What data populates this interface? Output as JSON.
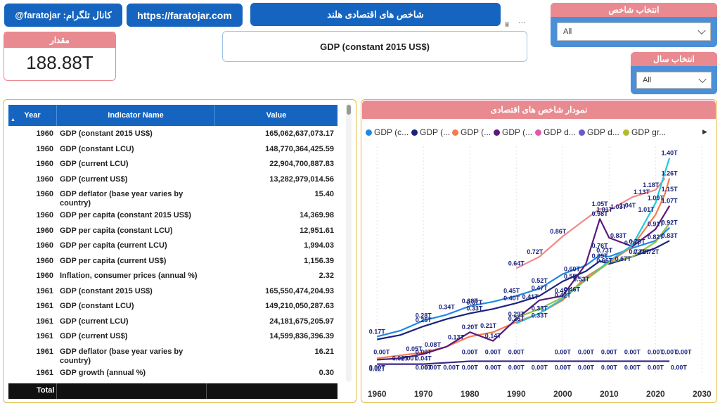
{
  "header": {
    "telegram": "@faratojar :کانال تلگرام",
    "website": "https://faratojar.com",
    "report_title": "شاخص های اقتصادی هلند",
    "selected_indicator": "GDP (constant 2015 US$)"
  },
  "kpi": {
    "label": "مقدار",
    "value": "188.88T"
  },
  "slicers": {
    "indicator": {
      "label": "انتخاب شاخص",
      "value": "All"
    },
    "year": {
      "label": "انتخاب سال",
      "value": "All"
    }
  },
  "table": {
    "headers": {
      "year": "Year",
      "name": "Indicator Name",
      "value": "Value"
    },
    "rows": [
      {
        "year": "1960",
        "name": "GDP (constant 2015 US$)",
        "value": "165,062,637,073.17"
      },
      {
        "year": "1960",
        "name": "GDP (constant LCU)",
        "value": "148,770,364,425.59"
      },
      {
        "year": "1960",
        "name": "GDP (current LCU)",
        "value": "22,904,700,887.83"
      },
      {
        "year": "1960",
        "name": "GDP (current US$)",
        "value": "13,282,979,014.56"
      },
      {
        "year": "1960",
        "name": "GDP deflator (base year varies by",
        "name2": "country)",
        "value": "15.40"
      },
      {
        "year": "1960",
        "name": "GDP per capita (constant 2015 US$)",
        "value": "14,369.98"
      },
      {
        "year": "1960",
        "name": "GDP per capita (constant LCU)",
        "value": "12,951.61"
      },
      {
        "year": "1960",
        "name": "GDP per capita (current LCU)",
        "value": "1,994.03"
      },
      {
        "year": "1960",
        "name": "GDP per capita (current US$)",
        "value": "1,156.39"
      },
      {
        "year": "1960",
        "name": "Inflation, consumer prices (annual %)",
        "value": "2.32"
      },
      {
        "year": "1961",
        "name": "GDP (constant 2015 US$)",
        "value": "165,550,474,204.93"
      },
      {
        "year": "1961",
        "name": "GDP (constant LCU)",
        "value": "149,210,050,287.63"
      },
      {
        "year": "1961",
        "name": "GDP (current LCU)",
        "value": "24,181,675,205.97"
      },
      {
        "year": "1961",
        "name": "GDP (current US$)",
        "value": "14,599,836,396.39"
      },
      {
        "year": "1961",
        "name": "GDP deflator (base year varies by",
        "name2": "country)",
        "value": "16.21"
      },
      {
        "year": "1961",
        "name": "GDP growth (annual %)",
        "value": "0.30"
      }
    ],
    "total_label": "Total"
  },
  "chart_panel_title": "نمودار شاخص های اقتصادی",
  "chart_data": {
    "type": "line",
    "legend": [
      {
        "label": "GDP (c...",
        "color": "#1e88e5"
      },
      {
        "label": "GDP (...",
        "color": "#1a237e"
      },
      {
        "label": "GDP (...",
        "color": "#f57c4e"
      },
      {
        "label": "GDP (...",
        "color": "#5a1a7a"
      },
      {
        "label": "GDP d...",
        "color": "#e05aa8"
      },
      {
        "label": "GDP d...",
        "color": "#6a5acd"
      },
      {
        "label": "GDP gr...",
        "color": "#b5b92a"
      }
    ],
    "x_ticks": [
      1960,
      1970,
      1980,
      1990,
      2000,
      2010,
      2020,
      2030
    ],
    "xlim": [
      1958,
      2031
    ],
    "ylim": [
      -0.08,
      1.48
    ],
    "series": [
      {
        "color": "#1e88e5",
        "values": [
          [
            1960,
            0.17
          ],
          [
            1965,
            0.21
          ],
          [
            1970,
            0.28
          ],
          [
            1975,
            0.32
          ],
          [
            1980,
            0.38
          ],
          [
            1985,
            0.41
          ],
          [
            1990,
            0.45
          ],
          [
            1995,
            0.5
          ],
          [
            2000,
            0.6
          ],
          [
            2005,
            0.66
          ],
          [
            2008,
            0.73
          ],
          [
            2010,
            0.72
          ],
          [
            2015,
            0.78
          ],
          [
            2020,
            0.83
          ],
          [
            2023,
            0.92
          ]
        ]
      },
      {
        "color": "#1a237e",
        "values": [
          [
            1960,
            0.15
          ],
          [
            1965,
            0.18
          ],
          [
            1970,
            0.24
          ],
          [
            1975,
            0.29
          ],
          [
            1980,
            0.33
          ],
          [
            1985,
            0.36
          ],
          [
            1990,
            0.4
          ],
          [
            1995,
            0.45
          ],
          [
            2000,
            0.55
          ],
          [
            2005,
            0.62
          ],
          [
            2008,
            0.69
          ],
          [
            2010,
            0.67
          ],
          [
            2015,
            0.72
          ],
          [
            2020,
            0.78
          ],
          [
            2023,
            0.83
          ]
        ]
      },
      {
        "color": "#f57c4e",
        "values": [
          [
            1960,
            0.02
          ],
          [
            1965,
            0.04
          ],
          [
            1970,
            0.06
          ],
          [
            1975,
            0.1
          ],
          [
            1980,
            0.17
          ],
          [
            1985,
            0.2
          ],
          [
            1990,
            0.27
          ],
          [
            1995,
            0.33
          ],
          [
            2000,
            0.42
          ],
          [
            2005,
            0.58
          ],
          [
            2010,
            0.68
          ],
          [
            2015,
            0.79
          ],
          [
            2020,
            1.01
          ],
          [
            2022,
            1.15
          ],
          [
            2023,
            1.26
          ]
        ]
      },
      {
        "color": "#5a1a7a",
        "values": [
          [
            1960,
            0.01
          ],
          [
            1965,
            0.02
          ],
          [
            1970,
            0.05
          ],
          [
            1975,
            0.1
          ],
          [
            1980,
            0.2
          ],
          [
            1985,
            0.14
          ],
          [
            1990,
            0.29
          ],
          [
            1995,
            0.42
          ],
          [
            2000,
            0.45
          ],
          [
            2005,
            0.67
          ],
          [
            2008,
            0.98
          ],
          [
            2010,
            0.85
          ],
          [
            2015,
            0.79
          ],
          [
            2020,
            0.91
          ],
          [
            2023,
            1.07
          ]
        ]
      },
      {
        "color": "#ef8a8a",
        "values": [
          [
            1990,
            0.64
          ],
          [
            1995,
            0.72
          ],
          [
            2000,
            0.86
          ],
          [
            2005,
            0.98
          ],
          [
            2008,
            1.05
          ],
          [
            2010,
            1.04
          ],
          [
            2015,
            1.13
          ],
          [
            2020,
            1.18
          ],
          [
            2022,
            1.26
          ]
        ]
      },
      {
        "color": "#3c2a8a",
        "values": [
          [
            1960,
            -0.02
          ],
          [
            1970,
            -0.02
          ],
          [
            1980,
            0.0
          ],
          [
            1990,
            0.0
          ],
          [
            2000,
            0.0
          ],
          [
            2010,
            0.0
          ],
          [
            2020,
            0.0
          ],
          [
            2023,
            0.0
          ]
        ]
      },
      {
        "color": "#26c6da",
        "values": [
          [
            1990,
            0.26
          ],
          [
            1995,
            0.33
          ],
          [
            2000,
            0.43
          ],
          [
            2005,
            0.56
          ],
          [
            2010,
            0.69
          ],
          [
            2015,
            0.8
          ],
          [
            2020,
            1.09
          ],
          [
            2022,
            1.3
          ],
          [
            2023,
            1.4
          ]
        ]
      },
      {
        "color": "#8bc34a",
        "values": [
          [
            1990,
            0.3
          ],
          [
            1995,
            0.36
          ],
          [
            2000,
            0.44
          ],
          [
            2005,
            0.56
          ],
          [
            2010,
            0.68
          ],
          [
            2015,
            0.72
          ],
          [
            2020,
            0.82
          ],
          [
            2023,
            0.95
          ]
        ]
      }
    ],
    "labels": [
      {
        "x": 1960,
        "y": 0.17,
        "t": "0.17T"
      },
      {
        "x": 1970,
        "y": 0.28,
        "t": "0.28T"
      },
      {
        "x": 1970,
        "y": 0.25,
        "t": "0.25T"
      },
      {
        "x": 1968,
        "y": 0.05,
        "t": "0.05T"
      },
      {
        "x": 1972,
        "y": 0.08,
        "t": "0.08T"
      },
      {
        "x": 1975,
        "y": 0.34,
        "t": "0.34T"
      },
      {
        "x": 1977,
        "y": 0.13,
        "t": "0.13T"
      },
      {
        "x": 1980,
        "y": 0.38,
        "t": "0.38T"
      },
      {
        "x": 1981,
        "y": 0.33,
        "t": "0.33T"
      },
      {
        "x": 1981,
        "y": 0.37,
        "t": "0.37T"
      },
      {
        "x": 1980,
        "y": 0.2,
        "t": "0.20T"
      },
      {
        "x": 1984,
        "y": 0.21,
        "t": "0.21T"
      },
      {
        "x": 1985,
        "y": 0.14,
        "t": "0.14T"
      },
      {
        "x": 1989,
        "y": 0.45,
        "t": "0.45T"
      },
      {
        "x": 1989,
        "y": 0.4,
        "t": "0.40T"
      },
      {
        "x": 1990,
        "y": 0.64,
        "t": "0.64T"
      },
      {
        "x": 1990,
        "y": 0.29,
        "t": "0.29T"
      },
      {
        "x": 1990,
        "y": 0.26,
        "t": "0.26T"
      },
      {
        "x": 1994,
        "y": 0.72,
        "t": "0.72T"
      },
      {
        "x": 1995,
        "y": 0.52,
        "t": "0.52T"
      },
      {
        "x": 1995,
        "y": 0.47,
        "t": "0.47T"
      },
      {
        "x": 1993,
        "y": 0.41,
        "t": "0.41T"
      },
      {
        "x": 1995,
        "y": 0.33,
        "t": "0.33T"
      },
      {
        "x": 1995,
        "y": 0.33,
        "t": "0.33T",
        "dy": 10
      },
      {
        "x": 1999,
        "y": 0.86,
        "t": "0.86T"
      },
      {
        "x": 2000,
        "y": 0.45,
        "t": "0.45T"
      },
      {
        "x": 2000,
        "y": 0.42,
        "t": "0.42T"
      },
      {
        "x": 2002,
        "y": 0.6,
        "t": "0.60T"
      },
      {
        "x": 2002,
        "y": 0.55,
        "t": "0.55T"
      },
      {
        "x": 2002,
        "y": 0.46,
        "t": "0.46T"
      },
      {
        "x": 2004,
        "y": 0.53,
        "t": "0.53T"
      },
      {
        "x": 2008,
        "y": 1.05,
        "t": "1.05T"
      },
      {
        "x": 2008,
        "y": 0.98,
        "t": "0.98T"
      },
      {
        "x": 2009,
        "y": 1.01,
        "t": "1.01T"
      },
      {
        "x": 2008,
        "y": 0.76,
        "t": "0.76T"
      },
      {
        "x": 2008,
        "y": 0.69,
        "t": "0.69T"
      },
      {
        "x": 2009,
        "y": 0.73,
        "t": "0.73T"
      },
      {
        "x": 2009,
        "y": 0.66,
        "t": "0.66T"
      },
      {
        "x": 2012,
        "y": 1.03,
        "t": "1.03T"
      },
      {
        "x": 2012,
        "y": 0.83,
        "t": "0.83T"
      },
      {
        "x": 2013,
        "y": 0.67,
        "t": "0.67T"
      },
      {
        "x": 2014,
        "y": 1.04,
        "t": "1.04T"
      },
      {
        "x": 2017,
        "y": 1.13,
        "t": "1.13T"
      },
      {
        "x": 2016,
        "y": 0.79,
        "t": "0.79T"
      },
      {
        "x": 2015,
        "y": 0.78,
        "t": "0.78T"
      },
      {
        "x": 2016,
        "y": 0.72,
        "t": "0.72T"
      },
      {
        "x": 2017,
        "y": 0.72,
        "t": "0.72T"
      },
      {
        "x": 2019,
        "y": 1.18,
        "t": "1.18T"
      },
      {
        "x": 2020,
        "y": 1.09,
        "t": "1.09T"
      },
      {
        "x": 2018,
        "y": 1.01,
        "t": "1.01T"
      },
      {
        "x": 2020,
        "y": 0.91,
        "t": "0.91T"
      },
      {
        "x": 2020,
        "y": 0.82,
        "t": "0.82T"
      },
      {
        "x": 2019,
        "y": 0.72,
        "t": "0.72T"
      },
      {
        "x": 2023,
        "y": 1.4,
        "t": "1.40T"
      },
      {
        "x": 2023,
        "y": 1.26,
        "t": "1.26T"
      },
      {
        "x": 2023,
        "y": 1.15,
        "t": "1.15T"
      },
      {
        "x": 2023,
        "y": 1.07,
        "t": "1.07T"
      },
      {
        "x": 2023,
        "y": 0.92,
        "t": "0.92T"
      },
      {
        "x": 2023,
        "y": 0.83,
        "t": "0.83T"
      }
    ],
    "zero_labels_row1": [
      1961,
      1970,
      1980,
      1985,
      1990,
      2000,
      2005,
      2010,
      2015,
      2020,
      2023,
      2026
    ],
    "zero_labels_row2": [
      1960,
      1970,
      1972,
      1976,
      1980,
      1985,
      1990,
      1995,
      2000,
      2005,
      2010,
      2015,
      2020,
      2025
    ],
    "zero_text": "0.00T",
    "neg_text": "0.02T",
    "extra_small": [
      {
        "x": 1965,
        "t": "0.02T"
      },
      {
        "x": 1967,
        "t": "0.00T"
      },
      {
        "x": 1970,
        "t": "0.04T"
      }
    ]
  }
}
